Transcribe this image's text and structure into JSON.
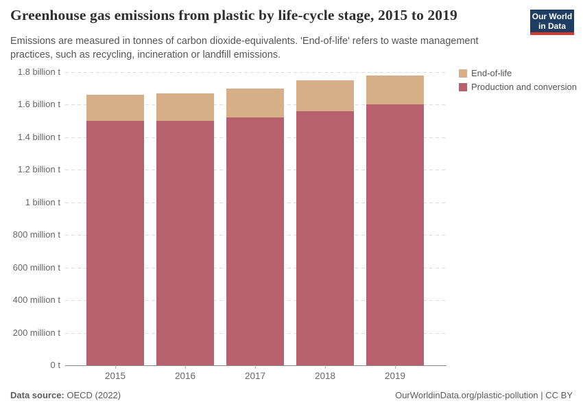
{
  "header": {
    "title": "Greenhouse gas emissions from plastic by life-cycle stage, 2015 to 2019",
    "subtitle": "Emissions are measured in tonnes of carbon dioxide-equivalents. 'End-of-life' refers to waste management practices, such as recycling, incineration or landfill emissions.",
    "logo": {
      "line1": "Our World",
      "line2": "in Data"
    }
  },
  "colors": {
    "end_of_life": "#D6AE88",
    "production_and_conversion": "#B6616D",
    "logo_navy": "#1d3d63",
    "logo_red": "#d6382e"
  },
  "legend": [
    {
      "label": "End-of-life",
      "color": "#D6AE88"
    },
    {
      "label": "Production and conversion",
      "color": "#B6616D"
    }
  ],
  "chart_data": {
    "type": "bar",
    "stacked": true,
    "title": "Greenhouse gas emissions from plastic by life-cycle stage, 2015 to 2019",
    "categories": [
      "2015",
      "2016",
      "2017",
      "2018",
      "2019"
    ],
    "series": [
      {
        "name": "Production and conversion",
        "color": "#B6616D",
        "values_billion_t": [
          1.5,
          1.5,
          1.52,
          1.56,
          1.6
        ]
      },
      {
        "name": "End-of-life",
        "color": "#D6AE88",
        "values_billion_t": [
          0.16,
          0.17,
          0.18,
          0.19,
          0.18
        ]
      }
    ],
    "totals_billion_t": [
      1.66,
      1.67,
      1.7,
      1.75,
      1.78
    ],
    "unit": "tonnes of carbon dioxide-equivalents",
    "ylim": [
      0,
      1.8
    ],
    "grid": true,
    "legend_position": "top-right",
    "yticks": [
      {
        "value": 0,
        "label": "0 t"
      },
      {
        "value": 0.2,
        "label": "200 million t"
      },
      {
        "value": 0.4,
        "label": "400 million t"
      },
      {
        "value": 0.6,
        "label": "600 million t"
      },
      {
        "value": 0.8,
        "label": "800 million t"
      },
      {
        "value": 1.0,
        "label": "1 billion t"
      },
      {
        "value": 1.2,
        "label": "1.2 billion t"
      },
      {
        "value": 1.4,
        "label": "1.4 billion t"
      },
      {
        "value": 1.6,
        "label": "1.6 billion t"
      },
      {
        "value": 1.8,
        "label": "1.8 billion t"
      }
    ]
  },
  "footer": {
    "source_label": "Data source:",
    "source_value": " OECD (2022)",
    "link": "OurWorldinData.org/plastic-pollution | CC BY"
  }
}
